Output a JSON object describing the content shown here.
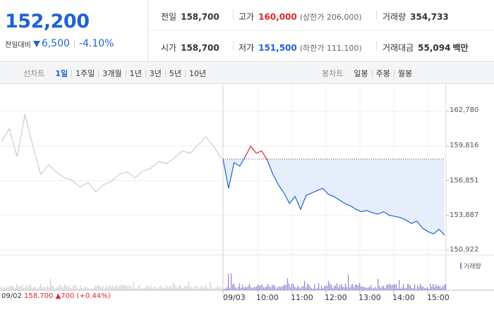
{
  "quote": {
    "price": "152,200",
    "change_label": "전일대비",
    "change_amount": "6,500",
    "change_pct": "-4.10%"
  },
  "stats": {
    "prev_close_label": "전일",
    "prev_close": "158,700",
    "high_label": "고가",
    "high": "160,000",
    "upper_limit": "(상한가 206,000)",
    "volume_label": "거래량",
    "volume": "354,733",
    "open_label": "시가",
    "open": "158,700",
    "low_label": "저가",
    "low": "151,500",
    "lower_limit": "(하한가 111,100)",
    "amount_label": "거래대금",
    "amount": "55,094",
    "amount_unit": "백만"
  },
  "toolbar": {
    "line_title": "선차트",
    "ranges": [
      "1일",
      "1주일",
      "3개월",
      "1년",
      "3년",
      "5년",
      "10년"
    ],
    "active_range": 0,
    "candle_title": "봉차트",
    "candles": [
      "일봉",
      "주봉",
      "월봉"
    ]
  },
  "colors": {
    "up": "#e0262d",
    "down": "#1f62d6",
    "prev_day_line": "#c4c4c4",
    "fill": "#e6eefb",
    "volume": "#9a7fd1"
  },
  "chart_data": {
    "type": "line",
    "y_ticks": [
      "162,780",
      "159,816",
      "156,851",
      "153,887",
      "150,922"
    ],
    "ylim": [
      150922,
      162780
    ],
    "x_ticks": [
      "09/03",
      "10:00",
      "11:00",
      "12:00",
      "13:00",
      "14:00",
      "15:00"
    ],
    "prev_day": {
      "date": "09/02",
      "close": "158,700",
      "change": "700",
      "change_pct": "(+0.44%)"
    },
    "reference_price": 158700,
    "prev_day_series": [
      160200,
      161300,
      158900,
      162500,
      159800,
      157400,
      158200,
      157600,
      157100,
      156900,
      156300,
      156700,
      155900,
      156500,
      156800,
      157400,
      157600,
      157100,
      157700,
      157900,
      158500,
      158300,
      158800,
      159400,
      159200,
      159900,
      160600,
      159800,
      158700
    ],
    "today_series": [
      158700,
      156200,
      158400,
      158100,
      158900,
      159800,
      159200,
      159400,
      158600,
      157400,
      156500,
      155800,
      154900,
      155500,
      154400,
      155600,
      155800,
      156000,
      156200,
      155700,
      155500,
      155200,
      154900,
      154700,
      154400,
      154200,
      154300,
      154100,
      154000,
      154200,
      153900,
      153800,
      153700,
      153500,
      153200,
      153400,
      152800,
      152500,
      152300,
      152700,
      152200
    ],
    "today_up_segment": [
      4,
      8
    ],
    "volume_legend": "거래량"
  }
}
